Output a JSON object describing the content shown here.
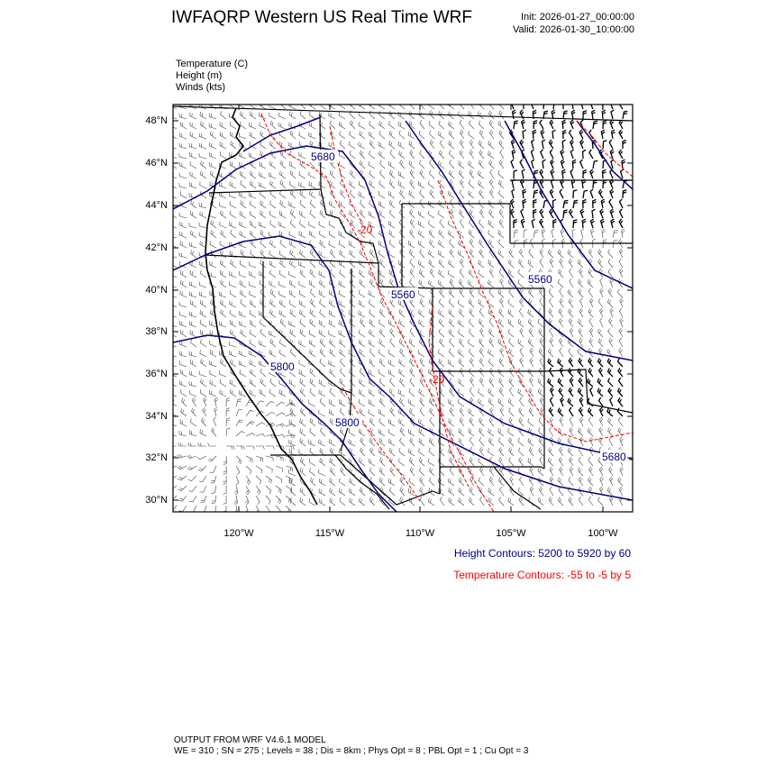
{
  "header": {
    "title": "IWFAQRP Western US Real Time WRF",
    "init": "Init: 2026-01-27_00:00:00",
    "valid": "Valid: 2026-01-30_10:00:00"
  },
  "variables": [
    "Temperature   (C)",
    "Height   (m)",
    "Winds   (kts)"
  ],
  "axes": {
    "lat_labels": [
      "48°N",
      "46°N",
      "44°N",
      "42°N",
      "40°N",
      "38°N",
      "36°N",
      "34°N",
      "32°N",
      "30°N"
    ],
    "lon_labels": [
      "120°W",
      "115°W",
      "110°W",
      "105°W",
      "100°W"
    ]
  },
  "contour_labels": {
    "height": [
      "5680",
      "5560",
      "5800",
      "5800",
      "5560",
      "5680"
    ],
    "temperature": [
      "-20",
      "-20"
    ]
  },
  "legend": {
    "height": "Height Contours: 5200 to 5920 by 60",
    "temperature": "Temperature Contours: -55 to -5 by 5"
  },
  "footer": {
    "model": "OUTPUT FROM WRF V4.6.1 MODEL",
    "params": "WE = 310 ; SN = 275 ; Levels = 38 ; Dis = 8km ; Phys Opt = 8 ; PBL Opt = 1 ; Cu Opt = 3"
  },
  "colors": {
    "height": "#000080",
    "temperature": "#ff0000",
    "border": "#000000"
  }
}
